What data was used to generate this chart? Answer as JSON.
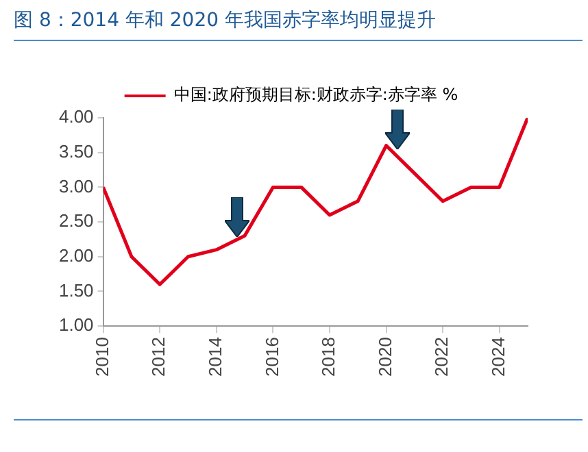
{
  "chart_data": {
    "type": "line",
    "title": "图 8：2014 年和 2020 年我国赤字率均明显提升",
    "x": [
      2010,
      2011,
      2012,
      2013,
      2014,
      2015,
      2016,
      2017,
      2018,
      2019,
      2020,
      2021,
      2022,
      2023,
      2024,
      2025
    ],
    "series": [
      {
        "name": "中国:政府预期目标:财政赤字:赤字率 %",
        "color": "#e0001b",
        "values": [
          3.0,
          2.0,
          1.6,
          2.0,
          2.1,
          2.3,
          3.0,
          3.0,
          2.6,
          2.8,
          3.6,
          3.2,
          2.8,
          3.0,
          3.0,
          4.0
        ]
      }
    ],
    "xlim": [
      2010,
      2025
    ],
    "xticks": [
      2010,
      2012,
      2014,
      2016,
      2018,
      2020,
      2022,
      2024
    ],
    "ylim": [
      1,
      4
    ],
    "yticks": [
      {
        "value": 1,
        "label": "1.00"
      },
      {
        "value": 1.5,
        "label": "1.50"
      },
      {
        "value": 2,
        "label": "2.00"
      },
      {
        "value": 2.5,
        "label": "2.50"
      },
      {
        "value": 3,
        "label": "3.00"
      },
      {
        "value": 3.5,
        "label": "3.50"
      },
      {
        "value": 4,
        "label": "4.00"
      }
    ],
    "grid": false,
    "legend": "top",
    "marker": "none",
    "line_style": "solid"
  }
}
